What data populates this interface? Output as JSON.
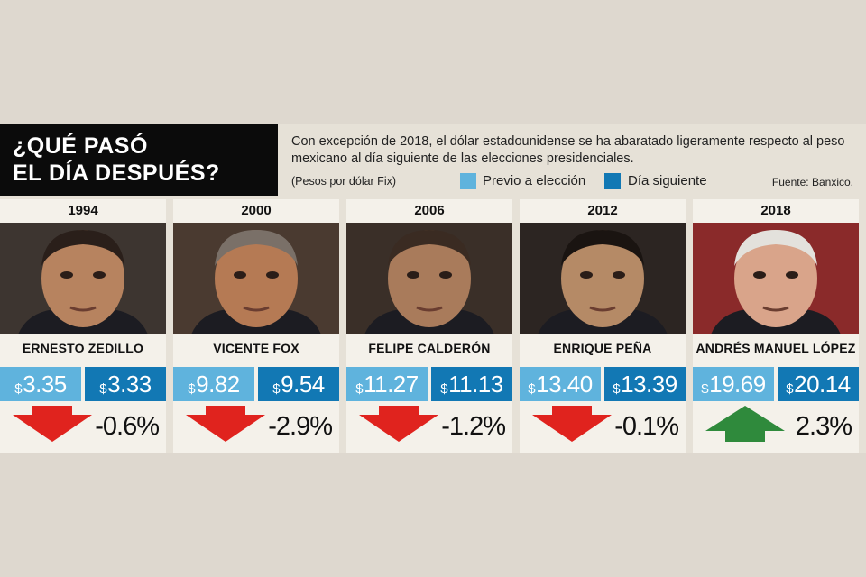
{
  "header": {
    "title_line1": "¿QUÉ PASÓ",
    "title_line2": "EL DÍA DESPUÉS?",
    "description": "Con excepción de 2018, el dólar estadounidense se ha abaratado ligeramente respecto al peso mexicano al día siguiente de las elecciones presidenciales.",
    "unit_note": "(Pesos por dólar Fix)",
    "source_label": "Fuente:",
    "source_value": "Banxico."
  },
  "currency_symbol": "$",
  "colors": {
    "previo": "#5fb3dd",
    "siguiente": "#1278b4",
    "down_arrow": "#e0231e",
    "up_arrow": "#2f8a3c"
  },
  "chart_data": {
    "type": "bar",
    "categories": [
      "1994",
      "2000",
      "2006",
      "2012",
      "2018"
    ],
    "names": [
      "ERNESTO ZEDILLO",
      "VICENTE FOX",
      "FELIPE CALDERÓN",
      "ENRIQUE PEÑA",
      "ANDRÉS MANUEL LÓPEZ"
    ],
    "legend": [
      "Previo a elección",
      "Día siguiente"
    ],
    "series": [
      {
        "name": "Previo a elección",
        "values": [
          3.35,
          9.82,
          11.27,
          13.4,
          19.69
        ],
        "labels": [
          "3.35",
          "9.82",
          "11.27",
          "13.40",
          "19.69"
        ]
      },
      {
        "name": "Día siguiente",
        "values": [
          3.33,
          9.54,
          11.13,
          13.39,
          20.14
        ],
        "labels": [
          "3.33",
          "9.54",
          "11.13",
          "13.39",
          "20.14"
        ]
      }
    ],
    "change_pct": [
      -0.6,
      -2.9,
      -1.2,
      -0.1,
      2.3
    ],
    "change_labels": [
      "-0.6%",
      "-2.9%",
      "-1.2%",
      "-0.1%",
      "2.3%"
    ],
    "direction": [
      "down",
      "down",
      "down",
      "down",
      "up"
    ]
  }
}
